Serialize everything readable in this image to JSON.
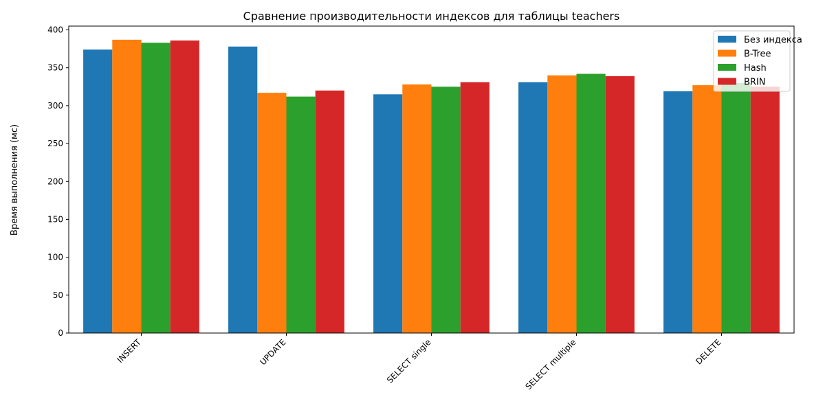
{
  "chart_data": {
    "type": "bar",
    "title": "Сравнение производительности индексов для таблицы teachers",
    "xlabel": "",
    "ylabel": "Время выполнения (мс)",
    "ylim": [
      0,
      405
    ],
    "yticks": [
      0,
      50,
      100,
      150,
      200,
      250,
      300,
      350,
      400
    ],
    "categories": [
      "INSERT",
      "UPDATE",
      "SELECT single",
      "SELECT multiple",
      "DELETE"
    ],
    "xtick_rotation": 45,
    "grid": false,
    "legend_position": "top-right",
    "series": [
      {
        "name": "Без индекса",
        "color": "#1f77b4",
        "values": [
          374,
          378,
          315,
          331,
          319
        ]
      },
      {
        "name": "B-Tree",
        "color": "#ff7f0e",
        "values": [
          387,
          317,
          328,
          340,
          327
        ]
      },
      {
        "name": "Hash",
        "color": "#2ca02c",
        "values": [
          383,
          312,
          325,
          342,
          330
        ]
      },
      {
        "name": "BRIN",
        "color": "#d62728",
        "values": [
          386,
          320,
          331,
          339,
          325
        ]
      }
    ]
  }
}
